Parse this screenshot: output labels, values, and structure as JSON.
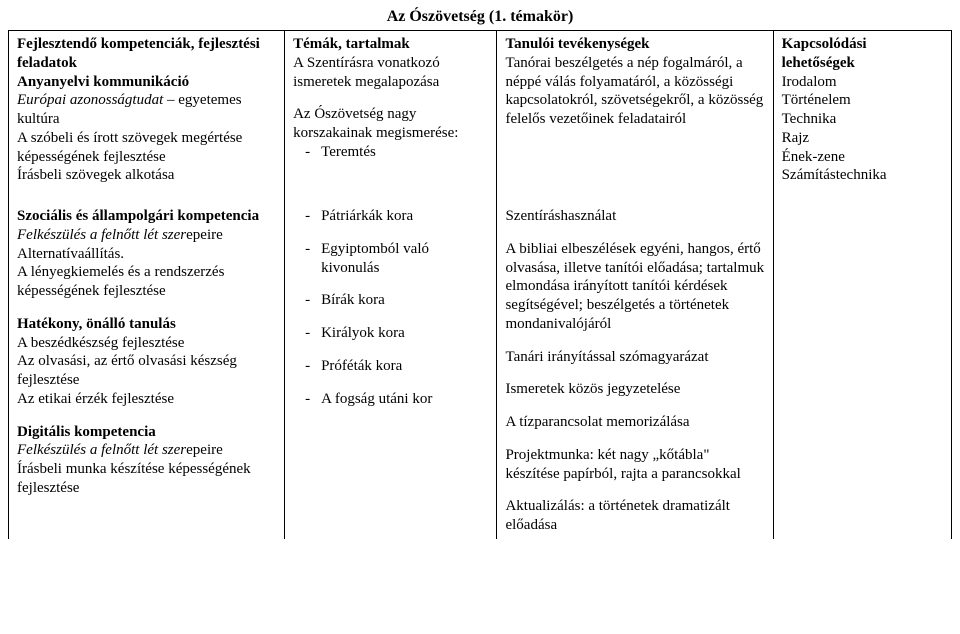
{
  "title": "Az Ószövetség (1. témakör)",
  "headers": {
    "c1": "Fejlesztendő kompetenciák, fejlesztési feladatok",
    "c2": "Témák, tartalmak",
    "c3": "Tanulói tevékenységek",
    "c4": "Kapcsolódási lehetőségek"
  },
  "row1": {
    "c1_line1_b": "Anyanyelvi kommunikáció",
    "c1_line2_i": "Európai azonosságtudat",
    "c1_line2_plain": " – egyetemes kultúra",
    "c1_line3": "A szóbeli és írott szövegek megértése képességének fejlesztése",
    "c1_line4": "Írásbeli szövegek alkotása",
    "c2_line1": "A Szentírásra vonatkozó ismeretek megalapozása",
    "c2_line2": "Az Ószövetség nagy korszakainak megismerése:",
    "c2_bullet1": "Teremtés",
    "c3_line1": "Tanórai beszélgetés a nép fogalmáról, a néppé válás folyamatáról, a közösségi kapcsolatokról, szövetségekről, a közösség felelős vezetőinek feladatairól",
    "c4_l1": "Irodalom",
    "c4_l2": "Történelem",
    "c4_l3": "Technika",
    "c4_l4": "Rajz",
    "c4_l5": "Ének-zene",
    "c4_l6": "Számítástechnika"
  },
  "row2": {
    "c1_b1": "Szociális és állampolgári kompetencia",
    "c1_i1": "Felkészülés a felnőtt lét szer",
    "c1_i1_plain": "epeire",
    "c1_l1": "Alternatívaállítás.",
    "c1_l2": "A lényegkiemelés és a rendszerzés képességének fejlesztése",
    "c1_b2": "Hatékony, önálló tanulás",
    "c1_l3": "A beszédkészség fejlesztése",
    "c1_l4": "Az olvasási, az értő olvasási készség fejlesztése",
    "c1_l5": "Az etikai érzék fejlesztése",
    "c1_b3": "Digitális kompetencia",
    "c1_i2": "Felkészülés a felnőtt lét szer",
    "c1_i2_plain": "epeire",
    "c1_l6": "Írásbeli munka készítése képességének fejlesztése",
    "c2_b1": "Pátriárkák kora",
    "c2_b2": "Egyiptomból való kivonulás",
    "c2_b3": "Bírák kora",
    "c2_b4": "Királyok kora",
    "c2_b5": "Próféták kora",
    "c2_b6": "A fogság utáni kor",
    "c3_l1": "Szentíráshasználat",
    "c3_l2": "A bibliai elbeszélések egyéni, hangos, értő olvasása, illetve tanítói előadása; tartalmuk elmondása irányított tanítói kérdések segítségével; beszélgetés a történetek mondanivalójáról",
    "c3_l3": "Tanári irányítással szómagyarázat",
    "c3_l4": "Ismeretek közös jegyzetelése",
    "c3_l5": "A tízparancsolat memorizálása",
    "c3_l6": "Projektmunka: két nagy „kőtábla\" készítése papírból, rajta a parancsokkal",
    "c3_l7": "Aktualizálás: a történetek dramatizált előadása"
  }
}
